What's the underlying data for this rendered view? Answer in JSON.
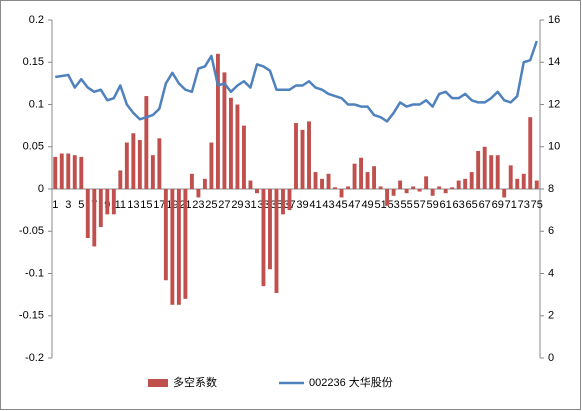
{
  "chart_data": {
    "type": "bar",
    "categories": [
      "1",
      null,
      "3",
      null,
      "5",
      null,
      "7",
      null,
      "9",
      null,
      "11",
      null,
      "13",
      null,
      "15",
      null,
      "17",
      null,
      "19",
      null,
      "21",
      null,
      "23",
      null,
      "25",
      null,
      "27",
      null,
      "29",
      null,
      "31",
      null,
      "33",
      null,
      "35",
      null,
      "37",
      null,
      "39",
      null,
      "41",
      null,
      "43",
      null,
      "45",
      null,
      "47",
      null,
      "49",
      null,
      "51",
      null,
      "53",
      null,
      "55",
      null,
      "57",
      null,
      "59",
      null,
      "61",
      null,
      "63",
      null,
      "65",
      null,
      "67",
      null,
      "69",
      null,
      "71",
      null,
      "73",
      null,
      "75"
    ],
    "series": [
      {
        "name": "多空系数",
        "type": "bar",
        "color": "#c0504d",
        "values": [
          0.038,
          0.042,
          0.042,
          0.04,
          0.038,
          -0.058,
          -0.068,
          -0.045,
          -0.03,
          -0.03,
          0.022,
          0.055,
          0.066,
          0.058,
          0.11,
          0.04,
          0.06,
          -0.108,
          -0.137,
          -0.137,
          -0.13,
          0.018,
          -0.01,
          0.012,
          0.055,
          0.16,
          0.138,
          0.108,
          0.1,
          0.075,
          0.01,
          -0.005,
          -0.115,
          -0.095,
          -0.123,
          -0.03,
          -0.025,
          0.078,
          0.07,
          0.08,
          0.02,
          0.012,
          0.018,
          0.002,
          -0.01,
          0.003,
          0.03,
          0.037,
          0.02,
          0.027,
          0.003,
          -0.02,
          -0.008,
          0.01,
          -0.005,
          0.003,
          -0.003,
          0.015,
          -0.008,
          0.003,
          -0.005,
          0.002,
          0.01,
          0.012,
          0.02,
          0.045,
          0.05,
          0.04,
          0.04,
          -0.01,
          0.028,
          0.012,
          0.018,
          0.085,
          0.01
        ]
      },
      {
        "name": "002236 大华股份",
        "type": "line",
        "axis": "y2",
        "color": "#4f81bd",
        "values": [
          13.3,
          13.35,
          13.4,
          12.8,
          13.2,
          12.8,
          12.6,
          12.7,
          12.2,
          12.3,
          12.9,
          12.0,
          11.6,
          11.3,
          11.4,
          11.5,
          11.8,
          13.0,
          13.5,
          13.0,
          12.7,
          12.6,
          13.7,
          13.8,
          14.3,
          12.9,
          13.0,
          12.6,
          12.9,
          13.1,
          12.8,
          13.9,
          13.8,
          13.6,
          12.7,
          12.7,
          12.7,
          12.9,
          12.9,
          13.1,
          12.8,
          12.7,
          12.5,
          12.4,
          12.3,
          12.0,
          12.0,
          11.9,
          11.9,
          11.5,
          11.4,
          11.2,
          11.6,
          12.1,
          11.9,
          12.0,
          12.0,
          12.2,
          11.9,
          12.5,
          12.6,
          12.3,
          12.3,
          12.5,
          12.2,
          12.1,
          12.1,
          12.3,
          12.6,
          12.2,
          12.1,
          12.4,
          14.0,
          14.1,
          15.0
        ]
      }
    ],
    "ylim": [
      -0.2,
      0.2
    ],
    "yticks": [
      -0.2,
      -0.15,
      -0.1,
      -0.05,
      0,
      0.05,
      0.1,
      0.15,
      0.2
    ],
    "y2lim": [
      0,
      16
    ],
    "y2ticks": [
      0,
      2,
      4,
      6,
      8,
      10,
      12,
      14,
      16
    ],
    "grid": false,
    "legend": "bottom"
  }
}
